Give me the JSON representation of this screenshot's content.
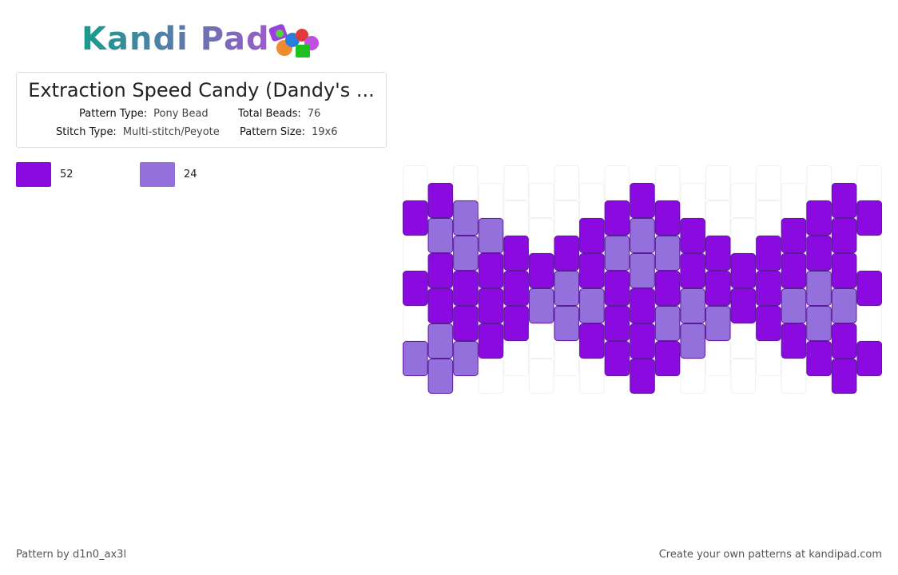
{
  "header": {
    "logo": "Kandi Pad"
  },
  "info": {
    "title": "Extraction Speed Candy (Dandy's ...",
    "fields": [
      {
        "label": "Pattern Type:",
        "value": "Pony Bead"
      },
      {
        "label": "Total Beads:",
        "value": "76"
      },
      {
        "label": "Stitch Type:",
        "value": "Multi-stitch/Peyote"
      },
      {
        "label": "Pattern Size:",
        "value": "19x6"
      }
    ]
  },
  "colors": [
    {
      "color": "#8a0ae0",
      "count": "52"
    },
    {
      "color": "#9370db",
      "count": "24"
    }
  ],
  "pattern": {
    "background": "#ffffff",
    "columns": [
      [
        null,
        0,
        null,
        0,
        null,
        1
      ],
      [
        0,
        1,
        0,
        0,
        1,
        1
      ],
      [
        null,
        1,
        1,
        0,
        0,
        1
      ],
      [
        null,
        1,
        0,
        0,
        0,
        null
      ],
      [
        null,
        null,
        0,
        0,
        0,
        null
      ],
      [
        null,
        null,
        0,
        1,
        null,
        null
      ],
      [
        null,
        null,
        0,
        1,
        1,
        null
      ],
      [
        null,
        0,
        0,
        1,
        0,
        null
      ],
      [
        null,
        0,
        1,
        0,
        0,
        0
      ],
      [
        0,
        1,
        1,
        0,
        0,
        0
      ],
      [
        null,
        0,
        1,
        0,
        1,
        0
      ],
      [
        null,
        0,
        0,
        1,
        1,
        null
      ],
      [
        null,
        null,
        0,
        0,
        1,
        null
      ],
      [
        null,
        null,
        0,
        0,
        null,
        null
      ],
      [
        null,
        null,
        0,
        0,
        0,
        null
      ],
      [
        null,
        0,
        0,
        1,
        0,
        null
      ],
      [
        null,
        0,
        0,
        1,
        1,
        0
      ],
      [
        0,
        0,
        0,
        1,
        0,
        0
      ],
      [
        null,
        0,
        null,
        0,
        null,
        0
      ]
    ]
  },
  "footer": {
    "left": "Pattern by d1n0_ax3l",
    "right": "Create your own patterns at kandipad.com"
  }
}
